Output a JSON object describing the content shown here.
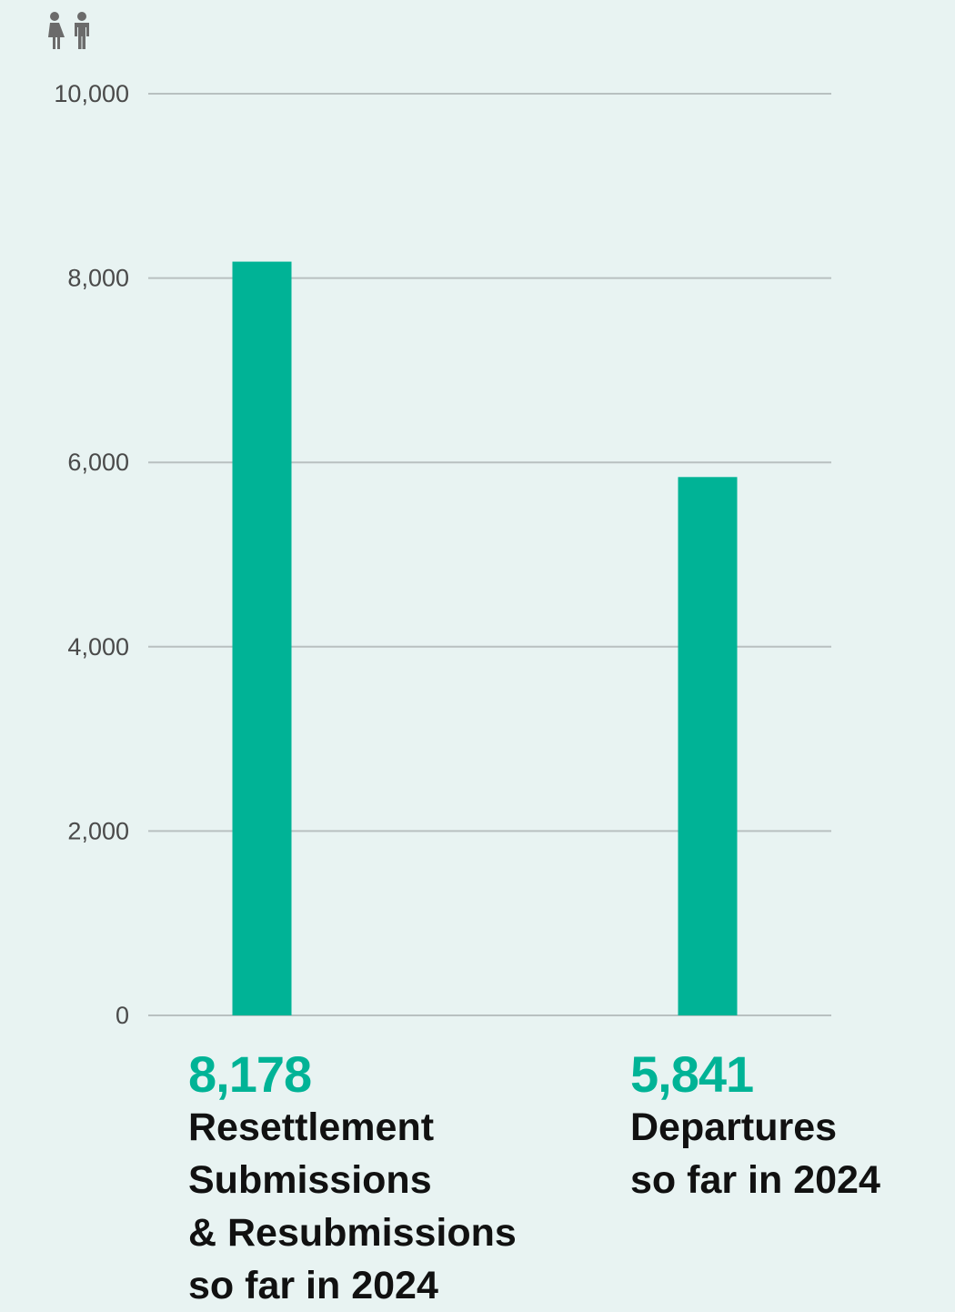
{
  "icon": "people-icon",
  "colors": {
    "bar": "#00b396",
    "value": "#00b396",
    "grid": "#b8c0c0",
    "background": "#e8f3f2"
  },
  "chart_data": {
    "type": "bar",
    "categories": [
      "Resettlement Submissions & Resubmissions so far in 2024",
      "Departures so far in 2024"
    ],
    "values": [
      8178,
      5841
    ],
    "value_labels": [
      "8,178",
      "5,841"
    ],
    "category_lines": [
      [
        "Resettlement",
        "Submissions",
        "& Resubmissions",
        "so far in 2024"
      ],
      [
        "Departures",
        "so far in 2024"
      ]
    ],
    "yticks": [
      0,
      2000,
      4000,
      6000,
      8000,
      10000
    ],
    "ytick_labels": [
      "0",
      "2,000",
      "4,000",
      "6,000",
      "8,000",
      "10,000"
    ],
    "ylim": [
      0,
      10000
    ],
    "grid": true,
    "legend": "none",
    "title": "",
    "xlabel": "",
    "ylabel": ""
  }
}
